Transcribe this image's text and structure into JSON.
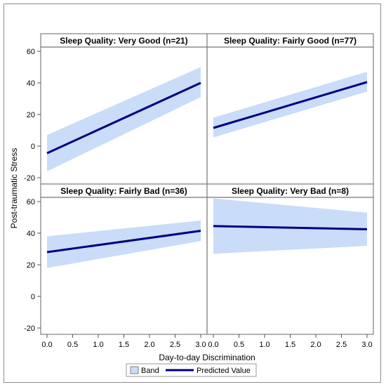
{
  "colors": {
    "band": "#c9dcf8",
    "line": "#000080",
    "border": "#7f7f7f",
    "grid_header": "#ffffff"
  },
  "chart_data": {
    "type": "line",
    "xlabel": "Day-to-day Discrimination",
    "ylabel": "Post-traumatic Stress",
    "xlim": [
      0,
      3
    ],
    "ylim": [
      -20,
      60
    ],
    "x_ticks": [
      "0.0",
      "0.5",
      "1.0",
      "1.5",
      "2.0",
      "2.5",
      "3.0"
    ],
    "y_ticks": [
      "-20",
      "0",
      "20",
      "40",
      "60"
    ],
    "legend": {
      "position": "bottom-center",
      "items": [
        {
          "label": "Band",
          "kind": "band"
        },
        {
          "label": "Predicted Value",
          "kind": "line"
        }
      ]
    },
    "panels": [
      {
        "title": "Sleep Quality: Very Good (n=21)",
        "x": [
          0,
          3
        ],
        "predicted": [
          -4.5,
          40
        ],
        "band_lower": [
          -16,
          31
        ],
        "band_upper": [
          7,
          50
        ]
      },
      {
        "title": "Sleep Quality: Fairly Good (n=77)",
        "x": [
          0,
          3
        ],
        "predicted": [
          11.5,
          40.5
        ],
        "band_lower": [
          5.5,
          34.5
        ],
        "band_upper": [
          18,
          47
        ]
      },
      {
        "title": "Sleep Quality: Fairly Bad (n=36)",
        "x": [
          0,
          3
        ],
        "predicted": [
          28,
          41.5
        ],
        "band_lower": [
          18,
          35
        ],
        "band_upper": [
          38,
          48
        ]
      },
      {
        "title": "Sleep Quality: Very Bad (n=8)",
        "x": [
          0,
          3
        ],
        "predicted": [
          44.5,
          42.5
        ],
        "band_lower": [
          27,
          32
        ],
        "band_upper": [
          62,
          53
        ]
      }
    ]
  }
}
